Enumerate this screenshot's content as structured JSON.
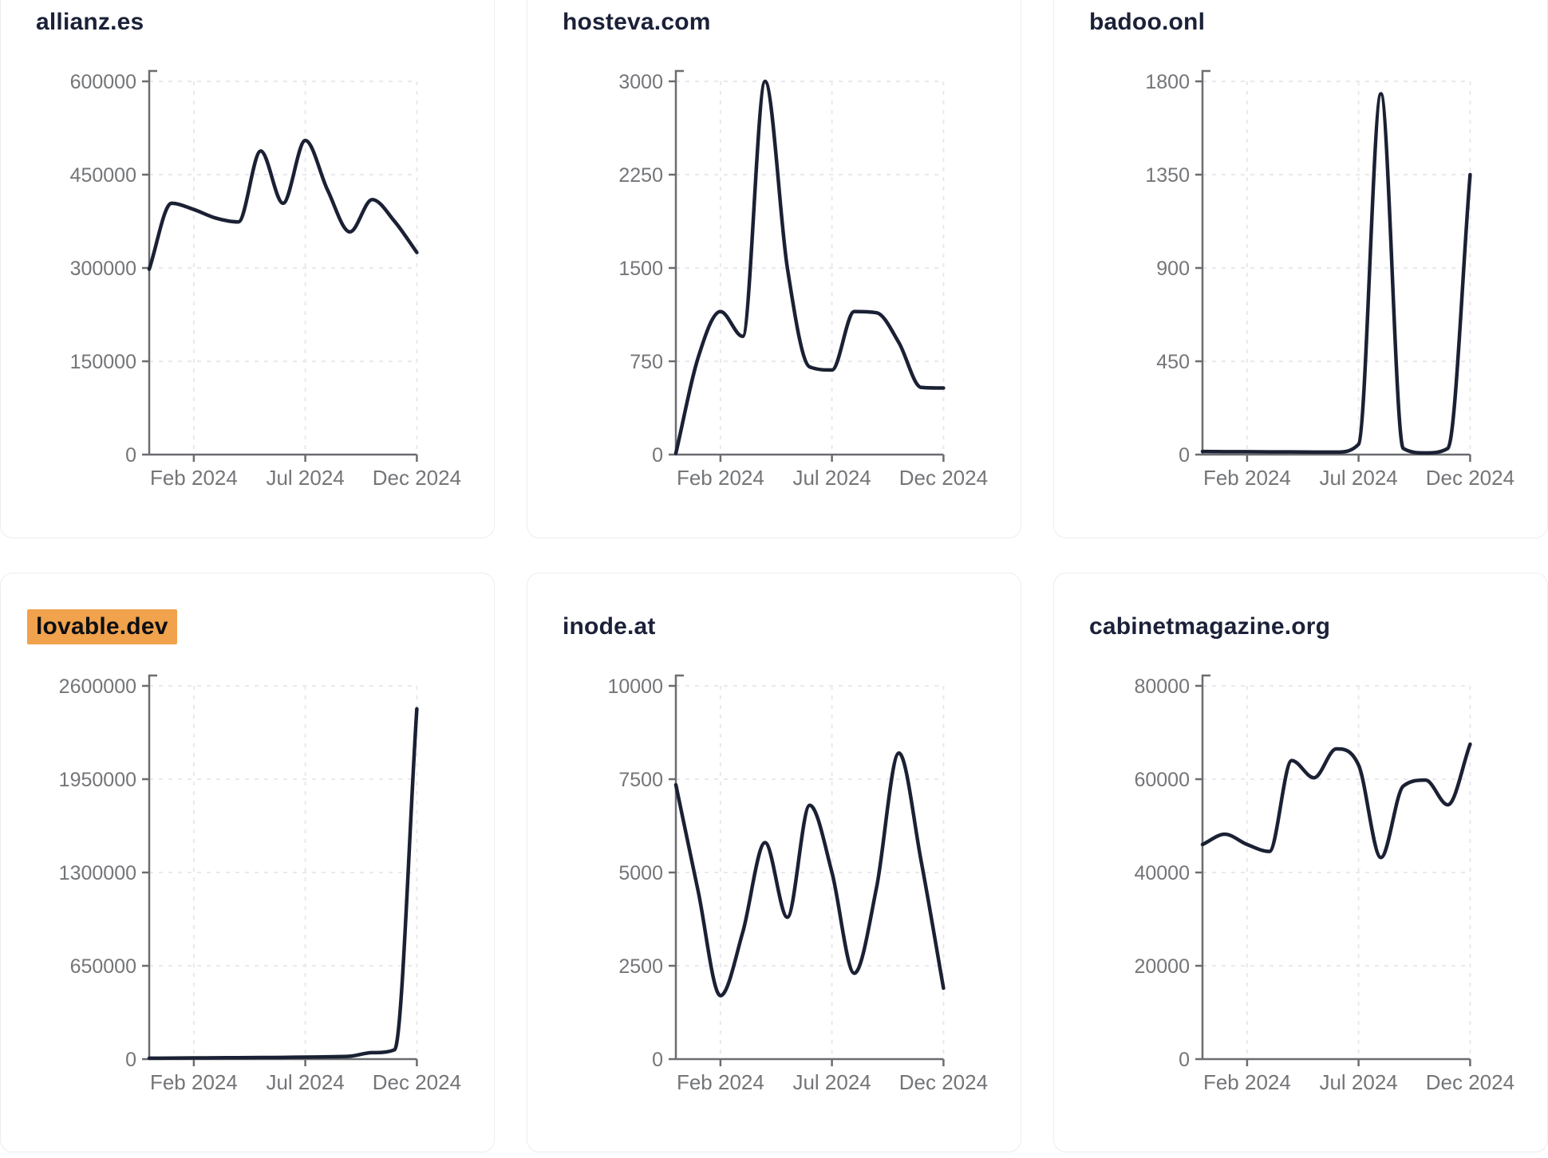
{
  "page": {
    "background": "#ffffff",
    "description": "Dashboard grid of six domain traffic sparkline charts"
  },
  "colors": {
    "line": "#1b2134",
    "title_text": "#1b2138",
    "axis": "#6b6d70",
    "tick_label": "#737578",
    "gridline": "#e8e9ed",
    "card_border": "#ebedf0",
    "highlight_bg": "#f0a24c",
    "highlight_text": "#0c0e14"
  },
  "chart_data": [
    {
      "type": "line",
      "title": "allianz.es",
      "highlighted": false,
      "x": [
        "Dec 2023",
        "Jan 2024",
        "Feb 2024",
        "Mar 2024",
        "Apr 2024",
        "May 2024",
        "Jun 2024",
        "Jul 2024",
        "Aug 2024",
        "Sep 2024",
        "Oct 2024",
        "Nov 2024",
        "Dec 2024"
      ],
      "values": [
        298000,
        404000,
        394000,
        380000,
        374000,
        488000,
        404000,
        505000,
        425000,
        358000,
        410000,
        375000,
        325000
      ],
      "ylim": [
        0,
        600000
      ],
      "yticks": [
        0,
        150000,
        300000,
        450000,
        600000
      ],
      "xticks": [
        {
          "label": "Feb 2024",
          "month_index": 2
        },
        {
          "label": "Jul 2024",
          "month_index": 7
        },
        {
          "label": "Dec 2024",
          "month_index": 12
        }
      ],
      "grid": true,
      "legend": "none"
    },
    {
      "type": "line",
      "title": "hosteva.com",
      "highlighted": false,
      "x": [
        "Dec 2023",
        "Jan 2024",
        "Feb 2024",
        "Mar 2024",
        "Apr 2024",
        "May 2024",
        "Jun 2024",
        "Jul 2024",
        "Aug 2024",
        "Sep 2024",
        "Oct 2024",
        "Nov 2024",
        "Dec 2024"
      ],
      "values": [
        10,
        780,
        1150,
        950,
        3000,
        1500,
        705,
        680,
        1150,
        1140,
        900,
        540,
        535
      ],
      "ylim": [
        0,
        3000
      ],
      "yticks": [
        0,
        750,
        1500,
        2250,
        3000
      ],
      "xticks": [
        {
          "label": "Feb 2024",
          "month_index": 2
        },
        {
          "label": "Jul 2024",
          "month_index": 7
        },
        {
          "label": "Dec 2024",
          "month_index": 12
        }
      ],
      "grid": true,
      "legend": "none"
    },
    {
      "type": "line",
      "title": "badoo.onl",
      "highlighted": false,
      "x": [
        "Dec 2023",
        "Jan 2024",
        "Feb 2024",
        "Mar 2024",
        "Apr 2024",
        "May 2024",
        "Jun 2024",
        "Jul 2024",
        "Aug 2024",
        "Sep 2024",
        "Oct 2024",
        "Nov 2024",
        "Dec 2024"
      ],
      "values": [
        15,
        14,
        14,
        13,
        13,
        12,
        12,
        50,
        1740,
        30,
        8,
        30,
        1350
      ],
      "ylim": [
        0,
        1800
      ],
      "yticks": [
        0,
        450,
        900,
        1350,
        1800
      ],
      "xticks": [
        {
          "label": "Feb 2024",
          "month_index": 2
        },
        {
          "label": "Jul 2024",
          "month_index": 7
        },
        {
          "label": "Dec 2024",
          "month_index": 12
        }
      ],
      "grid": true,
      "legend": "none"
    },
    {
      "type": "line",
      "title": "lovable.dev",
      "highlighted": true,
      "x": [
        "Dec 2023",
        "Jan 2024",
        "Feb 2024",
        "Mar 2024",
        "Apr 2024",
        "May 2024",
        "Jun 2024",
        "Jul 2024",
        "Aug 2024",
        "Sep 2024",
        "Oct 2024",
        "Nov 2024",
        "Dec 2024"
      ],
      "values": [
        6000,
        7000,
        8000,
        9000,
        10000,
        11000,
        12000,
        14000,
        16000,
        20000,
        45000,
        65000,
        2440000
      ],
      "ylim": [
        0,
        2600000
      ],
      "yticks": [
        0,
        650000,
        1300000,
        1950000,
        2600000
      ],
      "xticks": [
        {
          "label": "Feb 2024",
          "month_index": 2
        },
        {
          "label": "Jul 2024",
          "month_index": 7
        },
        {
          "label": "Dec 2024",
          "month_index": 12
        }
      ],
      "grid": true,
      "legend": "none"
    },
    {
      "type": "line",
      "title": "inode.at",
      "highlighted": false,
      "x": [
        "Dec 2023",
        "Jan 2024",
        "Feb 2024",
        "Mar 2024",
        "Apr 2024",
        "May 2024",
        "Jun 2024",
        "Jul 2024",
        "Aug 2024",
        "Sep 2024",
        "Oct 2024",
        "Nov 2024",
        "Dec 2024"
      ],
      "values": [
        7350,
        4500,
        1700,
        3400,
        5800,
        3800,
        6800,
        5000,
        2300,
        4600,
        8200,
        5300,
        1900
      ],
      "ylim": [
        0,
        10000
      ],
      "yticks": [
        0,
        2500,
        5000,
        7500,
        10000
      ],
      "xticks": [
        {
          "label": "Feb 2024",
          "month_index": 2
        },
        {
          "label": "Jul 2024",
          "month_index": 7
        },
        {
          "label": "Dec 2024",
          "month_index": 12
        }
      ],
      "grid": true,
      "legend": "none"
    },
    {
      "type": "line",
      "title": "cabinetmagazine.org",
      "highlighted": false,
      "x": [
        "Dec 2023",
        "Jan 2024",
        "Feb 2024",
        "Mar 2024",
        "Apr 2024",
        "May 2024",
        "Jun 2024",
        "Jul 2024",
        "Aug 2024",
        "Sep 2024",
        "Oct 2024",
        "Nov 2024",
        "Dec 2024"
      ],
      "values": [
        46000,
        48200,
        46000,
        44500,
        64000,
        60300,
        66500,
        63000,
        43200,
        58500,
        59800,
        54500,
        67500
      ],
      "ylim": [
        0,
        80000
      ],
      "yticks": [
        0,
        20000,
        40000,
        60000,
        80000
      ],
      "xticks": [
        {
          "label": "Feb 2024",
          "month_index": 2
        },
        {
          "label": "Jul 2024",
          "month_index": 7
        },
        {
          "label": "Dec 2024",
          "month_index": 12
        }
      ],
      "grid": true,
      "legend": "none"
    }
  ],
  "layout_hints": {
    "grid_columns": 3,
    "grid_rows": 2,
    "x_axis_span_months": 12,
    "y_tick_count": 5,
    "first_row_cropped_top": true
  }
}
